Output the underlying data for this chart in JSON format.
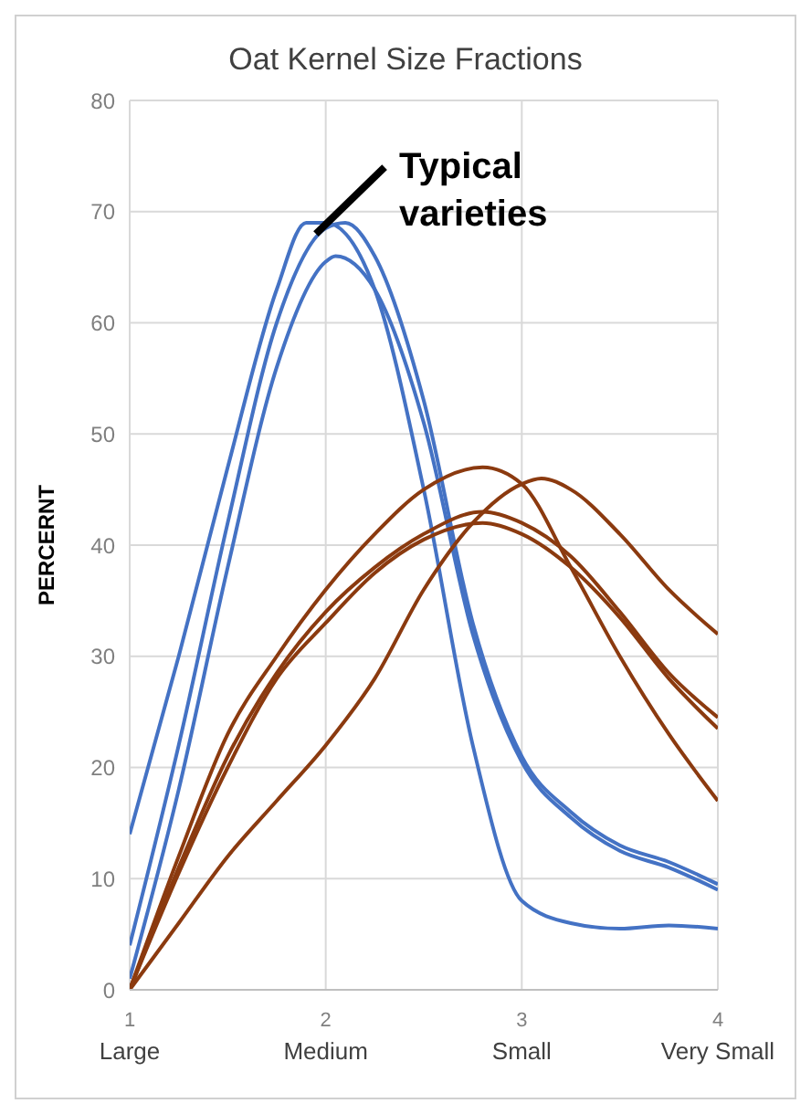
{
  "chart_data": {
    "type": "line",
    "title": "Oat Kernel Size Fractions",
    "ylabel": "PERCERNT",
    "xlim": [
      1,
      4
    ],
    "xticks": [
      {
        "value": 1,
        "label": "1\nLarge"
      },
      {
        "value": 2,
        "label": "2\nMedium"
      },
      {
        "value": 3,
        "label": "3\nSmall"
      },
      {
        "value": 4,
        "label": "4\nVery Small"
      }
    ],
    "ylim": [
      0,
      80
    ],
    "yticks": [
      0,
      10,
      20,
      30,
      40,
      50,
      60,
      70,
      80
    ],
    "grid": true,
    "marker": "none",
    "line_style": "solid",
    "annotations": [
      {
        "text": "Typical varieties",
        "x": 1.95,
        "y": 68
      }
    ],
    "series": [
      {
        "color": "#4472c4",
        "x": [
          1,
          1.25,
          1.5,
          1.75,
          1.9,
          2,
          2.25,
          2.5,
          2.75,
          3,
          3.25,
          3.5,
          3.75,
          4
        ],
        "values": [
          14,
          30,
          47,
          63,
          69,
          69,
          63,
          45,
          22,
          8,
          6,
          5.5,
          5.8,
          5.5
        ]
      },
      {
        "color": "#4472c4",
        "x": [
          1,
          1.25,
          1.5,
          1.75,
          2,
          2.1,
          2.25,
          2.5,
          2.75,
          3,
          3.25,
          3.5,
          3.75,
          4
        ],
        "values": [
          4,
          22,
          42,
          60,
          68.5,
          69,
          66,
          53,
          33,
          21,
          16,
          13,
          11.5,
          9.5
        ]
      },
      {
        "color": "#4472c4",
        "x": [
          1,
          1.25,
          1.5,
          1.75,
          2,
          2.05,
          2.25,
          2.5,
          2.75,
          3,
          3.25,
          3.5,
          3.75,
          4
        ],
        "values": [
          1,
          18,
          38,
          56,
          65.5,
          66,
          63,
          51,
          32,
          20.5,
          15.5,
          12.5,
          11,
          9
        ]
      },
      {
        "color": "#8b3a0f",
        "x": [
          1,
          1.25,
          1.5,
          1.75,
          2,
          2.25,
          2.5,
          2.8,
          3,
          3.25,
          3.5,
          3.75,
          4
        ],
        "values": [
          0,
          12,
          23,
          30,
          36,
          41,
          45,
          47,
          45.5,
          38,
          30,
          23,
          17
        ]
      },
      {
        "color": "#8b3a0f",
        "x": [
          1,
          1.25,
          1.5,
          1.75,
          2,
          2.25,
          2.5,
          2.75,
          3,
          3.1,
          3.25,
          3.5,
          3.75,
          4
        ],
        "values": [
          0,
          6,
          12,
          17,
          22,
          28,
          36,
          42,
          45.5,
          46,
          45,
          41,
          36,
          32
        ]
      },
      {
        "color": "#8b3a0f",
        "x": [
          1,
          1.25,
          1.5,
          1.75,
          2,
          2.25,
          2.5,
          2.8,
          3,
          3.25,
          3.5,
          3.75,
          4
        ],
        "values": [
          0,
          11,
          21,
          28.5,
          34,
          38,
          41,
          43,
          42,
          39,
          34,
          28.5,
          24.5
        ]
      },
      {
        "color": "#8b3a0f",
        "x": [
          1,
          1.25,
          1.5,
          1.75,
          2,
          2.25,
          2.5,
          2.8,
          3,
          3.25,
          3.5,
          3.75,
          4
        ],
        "values": [
          0,
          10.5,
          20,
          28,
          33,
          37.5,
          40.5,
          42,
          41,
          38,
          33.5,
          28,
          23.5
        ]
      }
    ]
  }
}
